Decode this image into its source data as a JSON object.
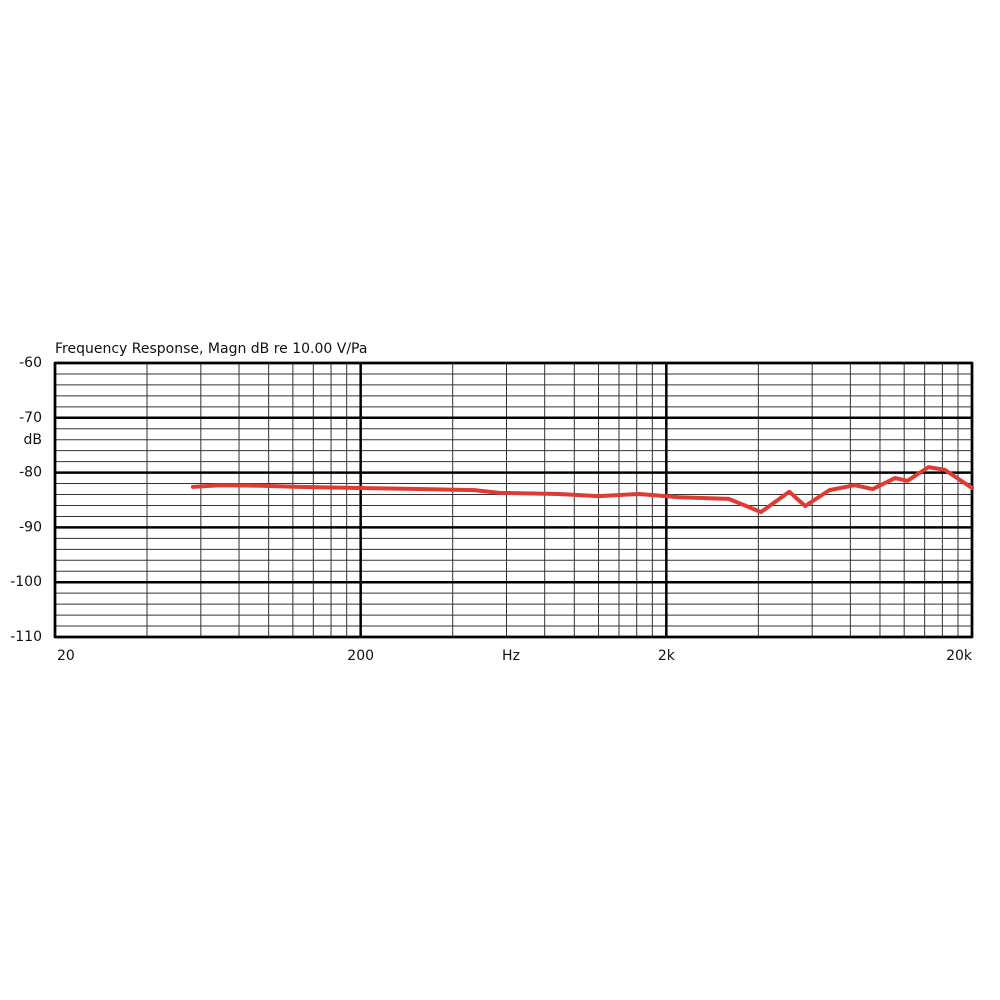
{
  "chart_data": {
    "type": "line",
    "title": "Frequency Response, Magn  dB re 10.00 V/Pa",
    "xlabel": "Hz",
    "ylabel": "dB",
    "xscale": "log",
    "xlim": [
      20,
      20000
    ],
    "xticks": [
      {
        "value": 20,
        "label": "20"
      },
      {
        "value": 200,
        "label": "200"
      },
      {
        "value": 2000,
        "label": "2k"
      },
      {
        "value": 20000,
        "label": "20k"
      }
    ],
    "ylim": [
      -110,
      -60
    ],
    "yticks": [
      -110,
      -100,
      -90,
      -80,
      -70,
      -60
    ],
    "grid": true,
    "x": [
      56.5,
      69.2,
      94.5,
      126,
      199,
      311,
      470,
      570,
      890,
      1200,
      1630,
      2200,
      3200,
      4080,
      5050,
      5690,
      6830,
      8270,
      9460,
      11200,
      12300,
      14400,
      16300,
      20000
    ],
    "series": [
      {
        "color": "#e03a33",
        "values": [
          -82.6,
          -82.3,
          -82.4,
          -82.6,
          -82.8,
          -83.0,
          -83.2,
          -83.7,
          -83.9,
          -84.3,
          -83.9,
          -84.5,
          -84.8,
          -87.2,
          -83.5,
          -86.1,
          -83.2,
          -82.3,
          -83.0,
          -81.0,
          -81.5,
          -79.0,
          -79.5,
          -82.8
        ]
      }
    ]
  }
}
